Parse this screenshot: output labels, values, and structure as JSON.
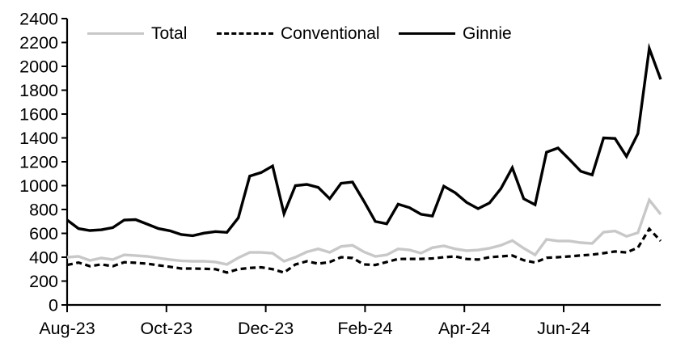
{
  "chart_data": {
    "type": "line",
    "title": "",
    "xlabel": "",
    "ylabel": "",
    "x_description": "weekly observations from Aug-2023 through early Aug-2024 (week index 0-52)",
    "ylim": [
      0,
      2400
    ],
    "y_tick_step": 200,
    "y_ticks": [
      0,
      200,
      400,
      600,
      800,
      1000,
      1200,
      1400,
      1600,
      1800,
      2000,
      2200,
      2400
    ],
    "x_ticks": [
      {
        "label": "Aug-23",
        "week": 0
      },
      {
        "label": "Oct-23",
        "week": 8.7
      },
      {
        "label": "Dec-23",
        "week": 17.4
      },
      {
        "label": "Feb-24",
        "week": 26.1
      },
      {
        "label": "Apr-24",
        "week": 34.8
      },
      {
        "label": "Jun-24",
        "week": 43.5
      }
    ],
    "grid": false,
    "legend_position": "top",
    "series": [
      {
        "name": "Total",
        "color": "#c8c8c8",
        "style": "solid",
        "values": [
          400,
          407,
          373,
          393,
          380,
          420,
          414,
          407,
          393,
          380,
          370,
          366,
          366,
          360,
          340,
          395,
          440,
          440,
          434,
          366,
          400,
          445,
          470,
          441,
          490,
          500,
          445,
          407,
          420,
          470,
          460,
          434,
          480,
          495,
          470,
          455,
          460,
          475,
          500,
          540,
          475,
          420,
          550,
          536,
          536,
          522,
          515,
          610,
          620,
          575,
          605,
          880,
          760
        ]
      },
      {
        "name": "Conventional",
        "color": "#000000",
        "style": "dashed",
        "values": [
          335,
          355,
          325,
          340,
          325,
          358,
          353,
          346,
          332,
          320,
          305,
          305,
          303,
          300,
          272,
          300,
          310,
          315,
          300,
          271,
          339,
          366,
          346,
          359,
          400,
          393,
          340,
          335,
          360,
          385,
          386,
          386,
          390,
          400,
          407,
          385,
          380,
          400,
          407,
          414,
          375,
          355,
          395,
          400,
          407,
          415,
          422,
          434,
          448,
          440,
          480,
          637,
          536
        ]
      },
      {
        "name": "Ginnie",
        "color": "#000000",
        "style": "solid",
        "values": [
          712,
          640,
          624,
          630,
          648,
          712,
          715,
          678,
          640,
          622,
          590,
          580,
          602,
          615,
          608,
          730,
          1080,
          1110,
          1165,
          765,
          1000,
          1010,
          985,
          890,
          1020,
          1030,
          870,
          700,
          680,
          845,
          815,
          760,
          745,
          995,
          940,
          860,
          807,
          855,
          975,
          1150,
          890,
          840,
          1280,
          1315,
          1220,
          1120,
          1090,
          1400,
          1395,
          1245,
          1435,
          2150,
          1890
        ]
      }
    ]
  }
}
